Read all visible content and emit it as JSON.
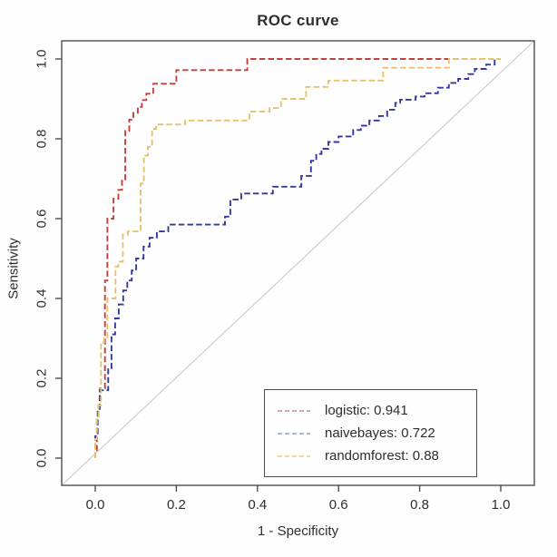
{
  "title": "ROC curve",
  "chart_data": {
    "type": "line",
    "subtype": "roc-step-curves",
    "title": "ROC curve",
    "xlabel": "1 - Specificity",
    "ylabel": "Sensitivity",
    "xlim": [
      0,
      1
    ],
    "ylim": [
      0,
      1
    ],
    "grid": false,
    "x_ticks": [
      0.0,
      0.2,
      0.4,
      0.6,
      0.8,
      1.0
    ],
    "y_ticks": [
      0.0,
      0.2,
      0.4,
      0.6,
      0.8,
      1.0
    ],
    "x_tick_labels": [
      "0.0",
      "0.2",
      "0.4",
      "0.6",
      "0.8",
      "1.0"
    ],
    "y_tick_labels": [
      "0.0",
      "0.2",
      "0.4",
      "0.6",
      "0.8",
      "1.0"
    ],
    "colors": {
      "axis": "#4d4d4d",
      "text": "#2e2e2e",
      "background": "#fefefe"
    },
    "reference_line": {
      "type": "diagonal",
      "color": "#cecece"
    },
    "legend": {
      "position": "bottom-right",
      "entries": [
        {
          "series": "logistic",
          "label": "logistic: 0.941",
          "auc": 0.941,
          "swatch_color": "#c49bb0"
        },
        {
          "series": "naivebayes",
          "label": "naivebayes: 0.722",
          "auc": 0.722,
          "swatch_color": "#9fa9c4"
        },
        {
          "series": "randomforest",
          "label": "randomforest: 0.88",
          "auc": 0.88,
          "swatch_color": "#e9d29a"
        }
      ]
    },
    "series": [
      {
        "name": "logistic",
        "auc": 0.941,
        "color": "#c2403d",
        "points": [
          [
            0.0,
            0.0
          ],
          [
            0.0,
            0.02
          ],
          [
            0.004,
            0.02
          ],
          [
            0.004,
            0.1
          ],
          [
            0.008,
            0.1
          ],
          [
            0.008,
            0.132
          ],
          [
            0.012,
            0.132
          ],
          [
            0.012,
            0.175
          ],
          [
            0.024,
            0.175
          ],
          [
            0.024,
            0.445
          ],
          [
            0.03,
            0.445
          ],
          [
            0.03,
            0.6
          ],
          [
            0.045,
            0.6
          ],
          [
            0.045,
            0.65
          ],
          [
            0.057,
            0.65
          ],
          [
            0.057,
            0.672
          ],
          [
            0.066,
            0.672
          ],
          [
            0.066,
            0.695
          ],
          [
            0.074,
            0.695
          ],
          [
            0.074,
            0.82
          ],
          [
            0.084,
            0.82
          ],
          [
            0.084,
            0.848
          ],
          [
            0.094,
            0.848
          ],
          [
            0.094,
            0.865
          ],
          [
            0.105,
            0.865
          ],
          [
            0.105,
            0.88
          ],
          [
            0.115,
            0.88
          ],
          [
            0.115,
            0.897
          ],
          [
            0.126,
            0.897
          ],
          [
            0.126,
            0.913
          ],
          [
            0.143,
            0.913
          ],
          [
            0.143,
            0.938
          ],
          [
            0.2,
            0.938
          ],
          [
            0.2,
            0.972
          ],
          [
            0.375,
            0.972
          ],
          [
            0.375,
            1.0
          ],
          [
            1.0,
            1.0
          ]
        ]
      },
      {
        "name": "naivebayes",
        "auc": 0.722,
        "color": "#3438a0",
        "points": [
          [
            0.0,
            0.0
          ],
          [
            0.0,
            0.055
          ],
          [
            0.006,
            0.055
          ],
          [
            0.006,
            0.12
          ],
          [
            0.011,
            0.12
          ],
          [
            0.011,
            0.17
          ],
          [
            0.032,
            0.17
          ],
          [
            0.032,
            0.225
          ],
          [
            0.04,
            0.225
          ],
          [
            0.04,
            0.31
          ],
          [
            0.049,
            0.31
          ],
          [
            0.049,
            0.35
          ],
          [
            0.058,
            0.35
          ],
          [
            0.058,
            0.385
          ],
          [
            0.069,
            0.385
          ],
          [
            0.069,
            0.42
          ],
          [
            0.079,
            0.42
          ],
          [
            0.079,
            0.445
          ],
          [
            0.09,
            0.445
          ],
          [
            0.09,
            0.47
          ],
          [
            0.101,
            0.47
          ],
          [
            0.101,
            0.5
          ],
          [
            0.119,
            0.5
          ],
          [
            0.119,
            0.53
          ],
          [
            0.134,
            0.53
          ],
          [
            0.134,
            0.552
          ],
          [
            0.152,
            0.552
          ],
          [
            0.152,
            0.568
          ],
          [
            0.18,
            0.568
          ],
          [
            0.18,
            0.585
          ],
          [
            0.32,
            0.585
          ],
          [
            0.32,
            0.605
          ],
          [
            0.333,
            0.605
          ],
          [
            0.333,
            0.648
          ],
          [
            0.36,
            0.648
          ],
          [
            0.36,
            0.663
          ],
          [
            0.438,
            0.663
          ],
          [
            0.438,
            0.68
          ],
          [
            0.508,
            0.68
          ],
          [
            0.508,
            0.707
          ],
          [
            0.532,
            0.707
          ],
          [
            0.532,
            0.745
          ],
          [
            0.545,
            0.745
          ],
          [
            0.545,
            0.762
          ],
          [
            0.558,
            0.762
          ],
          [
            0.558,
            0.775
          ],
          [
            0.575,
            0.775
          ],
          [
            0.575,
            0.792
          ],
          [
            0.6,
            0.792
          ],
          [
            0.6,
            0.806
          ],
          [
            0.636,
            0.806
          ],
          [
            0.636,
            0.822
          ],
          [
            0.655,
            0.822
          ],
          [
            0.655,
            0.833
          ],
          [
            0.676,
            0.833
          ],
          [
            0.676,
            0.846
          ],
          [
            0.7,
            0.846
          ],
          [
            0.7,
            0.857
          ],
          [
            0.72,
            0.857
          ],
          [
            0.72,
            0.873
          ],
          [
            0.74,
            0.873
          ],
          [
            0.74,
            0.89
          ],
          [
            0.752,
            0.89
          ],
          [
            0.752,
            0.898
          ],
          [
            0.79,
            0.898
          ],
          [
            0.79,
            0.906
          ],
          [
            0.812,
            0.906
          ],
          [
            0.812,
            0.914
          ],
          [
            0.845,
            0.914
          ],
          [
            0.845,
            0.928
          ],
          [
            0.872,
            0.928
          ],
          [
            0.872,
            0.94
          ],
          [
            0.895,
            0.94
          ],
          [
            0.895,
            0.95
          ],
          [
            0.92,
            0.95
          ],
          [
            0.92,
            0.962
          ],
          [
            0.936,
            0.962
          ],
          [
            0.936,
            0.975
          ],
          [
            0.964,
            0.975
          ],
          [
            0.964,
            0.986
          ],
          [
            0.985,
            0.986
          ],
          [
            0.985,
            1.0
          ],
          [
            1.0,
            1.0
          ]
        ]
      },
      {
        "name": "randomforest",
        "auc": 0.88,
        "color": "#e5c36d",
        "points": [
          [
            0.0,
            0.0
          ],
          [
            0.0,
            0.048
          ],
          [
            0.004,
            0.048
          ],
          [
            0.004,
            0.1
          ],
          [
            0.008,
            0.1
          ],
          [
            0.008,
            0.132
          ],
          [
            0.014,
            0.132
          ],
          [
            0.014,
            0.29
          ],
          [
            0.022,
            0.29
          ],
          [
            0.022,
            0.3
          ],
          [
            0.03,
            0.3
          ],
          [
            0.03,
            0.4
          ],
          [
            0.05,
            0.4
          ],
          [
            0.05,
            0.48
          ],
          [
            0.057,
            0.48
          ],
          [
            0.057,
            0.492
          ],
          [
            0.068,
            0.492
          ],
          [
            0.068,
            0.56
          ],
          [
            0.08,
            0.56
          ],
          [
            0.08,
            0.568
          ],
          [
            0.112,
            0.568
          ],
          [
            0.112,
            0.688
          ],
          [
            0.12,
            0.688
          ],
          [
            0.12,
            0.758
          ],
          [
            0.13,
            0.758
          ],
          [
            0.13,
            0.78
          ],
          [
            0.14,
            0.78
          ],
          [
            0.14,
            0.825
          ],
          [
            0.15,
            0.825
          ],
          [
            0.15,
            0.836
          ],
          [
            0.222,
            0.836
          ],
          [
            0.222,
            0.846
          ],
          [
            0.38,
            0.846
          ],
          [
            0.38,
            0.868
          ],
          [
            0.43,
            0.868
          ],
          [
            0.43,
            0.877
          ],
          [
            0.458,
            0.877
          ],
          [
            0.458,
            0.9
          ],
          [
            0.52,
            0.9
          ],
          [
            0.52,
            0.93
          ],
          [
            0.575,
            0.93
          ],
          [
            0.575,
            0.946
          ],
          [
            0.71,
            0.946
          ],
          [
            0.71,
            0.978
          ],
          [
            0.872,
            0.978
          ],
          [
            0.872,
            1.0
          ],
          [
            1.0,
            1.0
          ]
        ]
      }
    ]
  }
}
